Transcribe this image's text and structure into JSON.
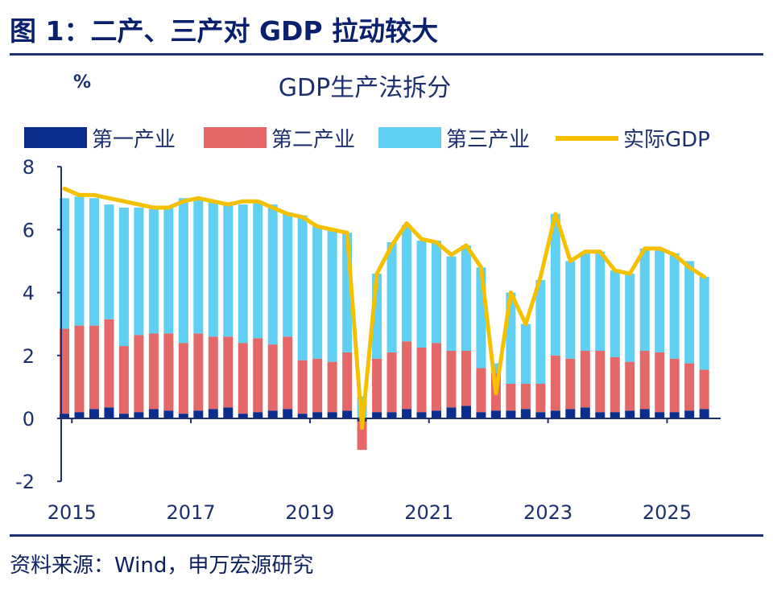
{
  "header": {
    "figure_title": "图 1：二产、三产对 GDP 拉动较大",
    "source": "资料来源：Wind，申万宏源研究"
  },
  "colors": {
    "primary": "#0b2e8e",
    "secondary": "#e46868",
    "tertiary": "#5fd0f2",
    "gdp": "#f5c000",
    "axis": "#1d2f6f"
  },
  "chart_data": {
    "type": "bar",
    "stacked": true,
    "title": "GDP生产法拆分",
    "ylabel": "%",
    "xlabel": "",
    "ylim": [
      -2,
      8
    ],
    "yticks": [
      "-2",
      "0",
      "2",
      "4",
      "6",
      "8"
    ],
    "xticks": [
      "2015",
      "2017",
      "2019",
      "2021",
      "2023",
      "2025"
    ],
    "categories": [
      "2015Q1",
      "2015Q2",
      "2015Q3",
      "2015Q4",
      "2016Q1",
      "2016Q2",
      "2016Q3",
      "2016Q4",
      "2017Q1",
      "2017Q2",
      "2017Q3",
      "2017Q4",
      "2018Q1",
      "2018Q2",
      "2018Q3",
      "2018Q4",
      "2019Q1",
      "2019Q2",
      "2019Q3",
      "2019Q4",
      "2020Q1",
      "2020Q2",
      "2020Q3",
      "2020Q4",
      "2021Q1",
      "2021Q2",
      "2021Q3",
      "2021Q4",
      "2022Q1",
      "2022Q2",
      "2022Q3",
      "2022Q4",
      "2023Q1",
      "2023Q2",
      "2023Q3",
      "2023Q4",
      "2024Q1",
      "2024Q2",
      "2024Q3",
      "2024Q4",
      "2025Q1",
      "2025Q2",
      "2025Q3",
      "2025Q4"
    ],
    "series": [
      {
        "name": "第一产业",
        "type": "bar",
        "values": [
          0.15,
          0.2,
          0.3,
          0.35,
          0.15,
          0.2,
          0.3,
          0.25,
          0.15,
          0.25,
          0.3,
          0.35,
          0.15,
          0.2,
          0.25,
          0.3,
          0.15,
          0.2,
          0.2,
          0.25,
          -0.1,
          0.2,
          0.2,
          0.3,
          0.2,
          0.25,
          0.35,
          0.4,
          0.2,
          0.25,
          0.25,
          0.3,
          0.2,
          0.25,
          0.3,
          0.35,
          0.2,
          0.2,
          0.25,
          0.3,
          0.2,
          0.2,
          0.25,
          0.3
        ]
      },
      {
        "name": "第二产业",
        "type": "bar",
        "values": [
          2.7,
          2.75,
          2.65,
          2.8,
          2.15,
          2.45,
          2.4,
          2.45,
          2.25,
          2.45,
          2.3,
          2.25,
          2.25,
          2.35,
          2.1,
          2.3,
          1.7,
          1.7,
          1.6,
          1.85,
          -0.9,
          1.7,
          1.9,
          2.15,
          2.05,
          2.15,
          1.8,
          1.75,
          1.4,
          1.2,
          0.85,
          0.8,
          0.9,
          1.75,
          1.6,
          1.8,
          1.95,
          1.75,
          1.55,
          1.85,
          1.9,
          1.7,
          1.5,
          1.25
        ]
      },
      {
        "name": "第三产业",
        "type": "bar",
        "values": [
          4.15,
          4.1,
          4.05,
          3.65,
          4.4,
          4.05,
          3.95,
          4.0,
          4.6,
          4.3,
          4.3,
          4.2,
          4.4,
          4.35,
          4.45,
          3.95,
          4.6,
          4.2,
          4.2,
          3.8,
          0.7,
          2.7,
          3.5,
          3.7,
          3.4,
          3.25,
          3.0,
          3.35,
          3.2,
          0.3,
          2.9,
          1.9,
          3.3,
          4.5,
          3.1,
          3.15,
          3.15,
          2.75,
          2.8,
          3.25,
          3.3,
          3.35,
          3.25,
          2.95
        ]
      },
      {
        "name": "实际GDP",
        "type": "line",
        "values": [
          7.3,
          7.1,
          7.1,
          7.0,
          6.9,
          6.8,
          6.7,
          6.7,
          6.9,
          7.0,
          6.9,
          6.8,
          6.9,
          6.9,
          6.7,
          6.5,
          6.4,
          6.1,
          6.0,
          5.9,
          -0.3,
          4.6,
          5.5,
          6.2,
          5.7,
          5.6,
          5.2,
          5.5,
          4.8,
          0.8,
          4.0,
          3.0,
          4.5,
          6.5,
          5.0,
          5.3,
          5.3,
          4.7,
          4.6,
          5.4,
          5.4,
          5.2,
          4.8,
          4.5
        ]
      }
    ],
    "legend_position": "top"
  }
}
